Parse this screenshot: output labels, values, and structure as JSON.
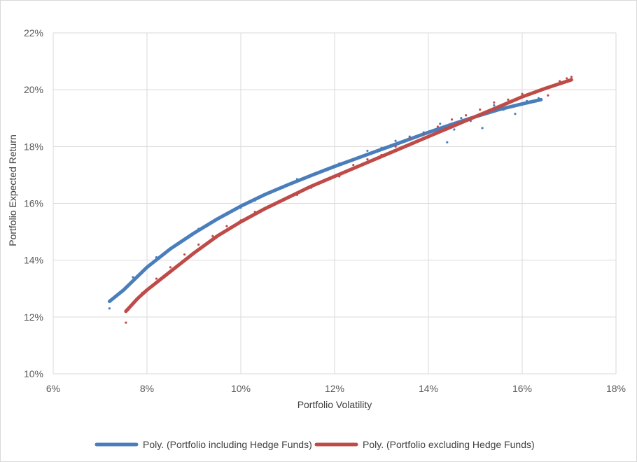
{
  "chart_data": {
    "type": "scatter",
    "title": "",
    "xlabel": "Portfolio Volatility",
    "ylabel": "Portfolio Expected Return",
    "xlim": [
      6,
      18
    ],
    "ylim": [
      10,
      22
    ],
    "x_ticks": [
      6,
      8,
      10,
      12,
      14,
      16,
      18
    ],
    "y_ticks": [
      10,
      12,
      14,
      16,
      18,
      20,
      22
    ],
    "x_tick_labels": [
      "6%",
      "8%",
      "10%",
      "12%",
      "14%",
      "16%",
      "18%"
    ],
    "y_tick_labels": [
      "10%",
      "12%",
      "14%",
      "16%",
      "18%",
      "20%",
      "22%"
    ],
    "grid": true,
    "legend_position": "bottom",
    "series": [
      {
        "name": "Poly. (Portfolio including Hedge Funds)",
        "color": "#4a7ebb",
        "trendline": {
          "x": [
            7.2,
            7.5,
            8.0,
            8.5,
            9.0,
            9.5,
            10.0,
            10.5,
            11.0,
            11.5,
            12.0,
            12.5,
            13.0,
            13.5,
            14.0,
            14.5,
            15.0,
            15.5,
            16.0,
            16.4
          ],
          "y": [
            12.55,
            12.95,
            13.75,
            14.4,
            14.95,
            15.45,
            15.9,
            16.3,
            16.65,
            16.98,
            17.3,
            17.6,
            17.9,
            18.2,
            18.5,
            18.78,
            19.05,
            19.3,
            19.5,
            19.65
          ]
        },
        "points": {
          "x": [
            7.2,
            7.45,
            7.7,
            7.95,
            8.2,
            8.5,
            8.8,
            9.1,
            9.4,
            9.7,
            10.0,
            10.3,
            10.6,
            10.9,
            11.2,
            11.5,
            11.8,
            12.1,
            12.4,
            12.7,
            13.0,
            13.3,
            13.6,
            13.9,
            14.1,
            14.25,
            14.4,
            14.55,
            14.7,
            14.9,
            15.15,
            15.4,
            15.6,
            15.85,
            16.1,
            16.35
          ],
          "y": [
            12.3,
            12.9,
            13.4,
            13.7,
            14.1,
            14.4,
            14.75,
            15.1,
            15.35,
            15.6,
            15.85,
            16.1,
            16.35,
            16.55,
            16.85,
            17.0,
            17.2,
            17.4,
            17.55,
            17.85,
            17.95,
            18.2,
            18.35,
            18.5,
            18.55,
            18.8,
            18.15,
            18.6,
            19.0,
            18.9,
            18.65,
            19.45,
            19.3,
            19.15,
            19.6,
            19.7
          ]
        }
      },
      {
        "name": "Poly. (Portfolio excluding Hedge Funds)",
        "color": "#be4b48",
        "trendline": {
          "x": [
            7.55,
            7.8,
            8.0,
            8.5,
            9.0,
            9.5,
            10.0,
            10.5,
            11.0,
            11.5,
            12.0,
            12.5,
            13.0,
            13.5,
            14.0,
            14.5,
            15.0,
            15.5,
            16.0,
            16.5,
            17.05
          ],
          "y": [
            12.2,
            12.65,
            12.95,
            13.6,
            14.25,
            14.85,
            15.35,
            15.8,
            16.2,
            16.6,
            16.95,
            17.3,
            17.65,
            18.0,
            18.35,
            18.7,
            19.05,
            19.4,
            19.75,
            20.05,
            20.35
          ]
        },
        "points": {
          "x": [
            7.55,
            7.6,
            7.9,
            8.2,
            8.5,
            8.8,
            9.1,
            9.4,
            9.7,
            10.0,
            10.3,
            10.6,
            10.9,
            11.2,
            11.5,
            11.8,
            12.1,
            12.4,
            12.7,
            13.0,
            13.3,
            13.6,
            13.9,
            14.2,
            14.5,
            14.8,
            15.1,
            15.4,
            15.7,
            16.0,
            16.3,
            16.55,
            16.8,
            16.95,
            17.05
          ],
          "y": [
            11.8,
            12.25,
            12.85,
            13.35,
            13.75,
            14.2,
            14.55,
            14.85,
            15.2,
            15.4,
            15.7,
            15.9,
            16.1,
            16.3,
            16.55,
            16.8,
            16.95,
            17.35,
            17.55,
            17.7,
            18.0,
            18.3,
            18.45,
            18.7,
            18.95,
            19.1,
            19.3,
            19.55,
            19.65,
            19.85,
            19.95,
            19.8,
            20.3,
            20.4,
            20.45
          ]
        }
      }
    ]
  }
}
